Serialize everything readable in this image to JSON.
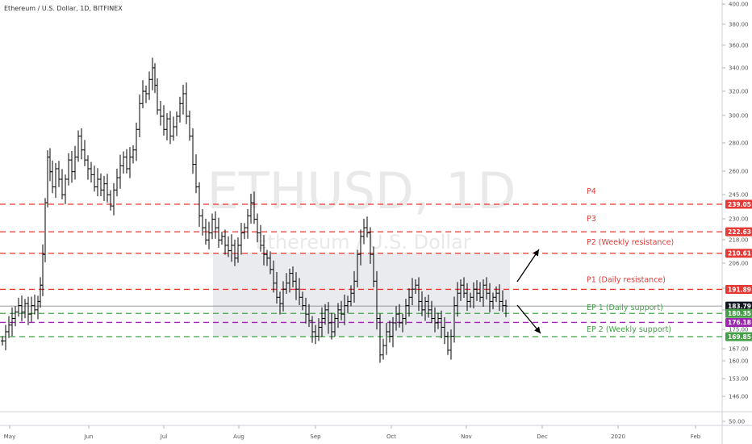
{
  "header": {
    "title": "Ethereum / U.S. Dollar, 1D, BITFINEX"
  },
  "watermark": {
    "symbol": "ETHUSD, 1D",
    "name": "Ethereum / U.S. Dollar"
  },
  "colors": {
    "resistance": "#e53935",
    "support": "#43a047",
    "purple": "#9c27b0",
    "current": "#131722",
    "zone": "#e6e7eb",
    "candle": "#000000"
  },
  "chart_data": {
    "type": "ohlc",
    "title": "Ethereum / U.S. Dollar, 1D, BITFINEX",
    "y_axis": {
      "scale": "log",
      "ticks": [
        "400.00",
        "380.00",
        "360.00",
        "340.00",
        "320.00",
        "300.00",
        "280.00",
        "260.00",
        "245.00",
        "230.00",
        "218.00",
        "206.00",
        "194.00",
        "184.00",
        "175.00",
        "167.00",
        "160.00",
        "153.00",
        "146.00",
        "50.00"
      ]
    },
    "x_axis": {
      "ticks": [
        "May",
        "Jun",
        "Jul",
        "Aug",
        "Sep",
        "Oct",
        "Nov",
        "Dec",
        "2020",
        "Feb"
      ]
    },
    "price_series": [
      [
        0,
        168
      ],
      [
        4,
        172
      ],
      [
        8,
        175
      ],
      [
        12,
        178
      ],
      [
        16,
        181
      ],
      [
        20,
        184
      ],
      [
        24,
        181
      ],
      [
        28,
        185
      ],
      [
        32,
        180
      ],
      [
        36,
        184
      ],
      [
        40,
        182
      ],
      [
        44,
        186
      ],
      [
        47,
        194
      ],
      [
        50,
        210
      ],
      [
        53,
        240
      ],
      [
        56,
        270
      ],
      [
        59,
        260
      ],
      [
        62,
        250
      ],
      [
        66,
        262
      ],
      [
        70,
        255
      ],
      [
        74,
        245
      ],
      [
        78,
        255
      ],
      [
        82,
        268
      ],
      [
        86,
        260
      ],
      [
        90,
        270
      ],
      [
        94,
        285
      ],
      [
        98,
        275
      ],
      [
        102,
        268
      ],
      [
        106,
        262
      ],
      [
        110,
        258
      ],
      [
        114,
        250
      ],
      [
        118,
        255
      ],
      [
        122,
        248
      ],
      [
        126,
        252
      ],
      [
        130,
        245
      ],
      [
        134,
        238
      ],
      [
        138,
        248
      ],
      [
        142,
        256
      ],
      [
        146,
        264
      ],
      [
        150,
        270
      ],
      [
        154,
        262
      ],
      [
        158,
        270
      ],
      [
        162,
        275
      ],
      [
        166,
        290
      ],
      [
        170,
        310
      ],
      [
        174,
        320
      ],
      [
        178,
        318
      ],
      [
        182,
        330
      ],
      [
        186,
        340
      ],
      [
        189,
        325
      ],
      [
        192,
        305
      ],
      [
        196,
        300
      ],
      [
        200,
        290
      ],
      [
        204,
        298
      ],
      [
        208,
        285
      ],
      [
        212,
        292
      ],
      [
        216,
        300
      ],
      [
        220,
        310
      ],
      [
        224,
        318
      ],
      [
        228,
        300
      ],
      [
        232,
        285
      ],
      [
        236,
        265
      ],
      [
        240,
        250
      ],
      [
        244,
        232
      ],
      [
        248,
        225
      ],
      [
        252,
        218
      ],
      [
        256,
        222
      ],
      [
        260,
        230
      ],
      [
        264,
        225
      ],
      [
        268,
        218
      ],
      [
        272,
        220
      ],
      [
        276,
        215
      ],
      [
        280,
        212
      ],
      [
        284,
        215
      ],
      [
        288,
        208
      ],
      [
        292,
        215
      ],
      [
        296,
        222
      ],
      [
        300,
        225
      ],
      [
        304,
        232
      ],
      [
        308,
        240
      ],
      [
        312,
        230
      ],
      [
        316,
        222
      ],
      [
        320,
        215
      ],
      [
        324,
        210
      ],
      [
        328,
        208
      ],
      [
        332,
        202
      ],
      [
        336,
        195
      ],
      [
        340,
        188
      ],
      [
        344,
        185
      ],
      [
        348,
        192
      ],
      [
        352,
        195
      ],
      [
        356,
        200
      ],
      [
        360,
        196
      ],
      [
        364,
        192
      ],
      [
        368,
        188
      ],
      [
        372,
        184
      ],
      [
        376,
        180
      ],
      [
        380,
        177
      ],
      [
        384,
        172
      ],
      [
        388,
        170
      ],
      [
        392,
        174
      ],
      [
        396,
        178
      ],
      [
        400,
        182
      ],
      [
        404,
        176
      ],
      [
        408,
        172
      ],
      [
        412,
        178
      ],
      [
        416,
        182
      ],
      [
        420,
        180
      ],
      [
        424,
        184
      ],
      [
        428,
        186
      ],
      [
        432,
        190
      ],
      [
        436,
        196
      ],
      [
        440,
        210
      ],
      [
        444,
        220
      ],
      [
        448,
        225
      ],
      [
        452,
        222
      ],
      [
        456,
        210
      ],
      [
        460,
        196
      ],
      [
        464,
        178
      ],
      [
        468,
        162
      ],
      [
        472,
        166
      ],
      [
        476,
        172
      ],
      [
        480,
        170
      ],
      [
        484,
        176
      ],
      [
        488,
        180
      ],
      [
        492,
        176
      ],
      [
        496,
        178
      ],
      [
        500,
        184
      ],
      [
        504,
        188
      ],
      [
        508,
        192
      ],
      [
        512,
        194
      ],
      [
        516,
        186
      ],
      [
        520,
        182
      ],
      [
        524,
        186
      ],
      [
        528,
        182
      ],
      [
        532,
        178
      ],
      [
        536,
        176
      ],
      [
        540,
        178
      ],
      [
        544,
        174
      ],
      [
        548,
        170
      ],
      [
        552,
        164
      ],
      [
        556,
        170
      ],
      [
        560,
        184
      ],
      [
        564,
        190
      ],
      [
        568,
        194
      ],
      [
        572,
        190
      ],
      [
        576,
        186
      ],
      [
        580,
        188
      ],
      [
        584,
        192
      ],
      [
        588,
        190
      ],
      [
        592,
        188
      ],
      [
        596,
        194
      ],
      [
        600,
        190
      ],
      [
        604,
        186
      ],
      [
        608,
        188
      ],
      [
        612,
        190
      ],
      [
        616,
        186
      ],
      [
        620,
        184
      ],
      [
        624,
        183.79
      ]
    ],
    "shaded_zone": {
      "x_start": 264,
      "x_end": 632,
      "top_price": 210.61,
      "bottom_price": 169.85
    },
    "current_price": 183.79,
    "levels": [
      {
        "label": "P4",
        "price": 239.05,
        "color": "#e53935"
      },
      {
        "label": "P3",
        "price": 222.63,
        "color": "#e53935"
      },
      {
        "label": "P2 (Weekly resistance)",
        "price": 210.61,
        "color": "#e53935"
      },
      {
        "label": "P1 (Daily resistance)",
        "price": 191.89,
        "color": "#e53935"
      },
      {
        "label": "EP 1 (Daily support)",
        "price": 180.35,
        "color": "#43a047"
      },
      {
        "label": "EP 2 (Weekly support)",
        "price": 169.85,
        "color": "#43a047"
      },
      {
        "label": "",
        "price": 176.18,
        "color": "#9c27b0"
      }
    ],
    "badges": [
      {
        "text": "239.05",
        "price": 239.05,
        "color": "#e53935"
      },
      {
        "text": "222.63",
        "price": 222.63,
        "color": "#e53935"
      },
      {
        "text": "210.61",
        "price": 210.61,
        "color": "#e53935"
      },
      {
        "text": "191.89",
        "price": 191.89,
        "color": "#e53935"
      },
      {
        "text": "183.79",
        "price": 183.79,
        "color": "#131722"
      },
      {
        "text": "180.35",
        "price": 180.35,
        "color": "#43a047"
      },
      {
        "text": "176.18",
        "price": 176.18,
        "color": "#9c27b0"
      },
      {
        "text": "169.85",
        "price": 169.85,
        "color": "#43a047"
      }
    ]
  }
}
